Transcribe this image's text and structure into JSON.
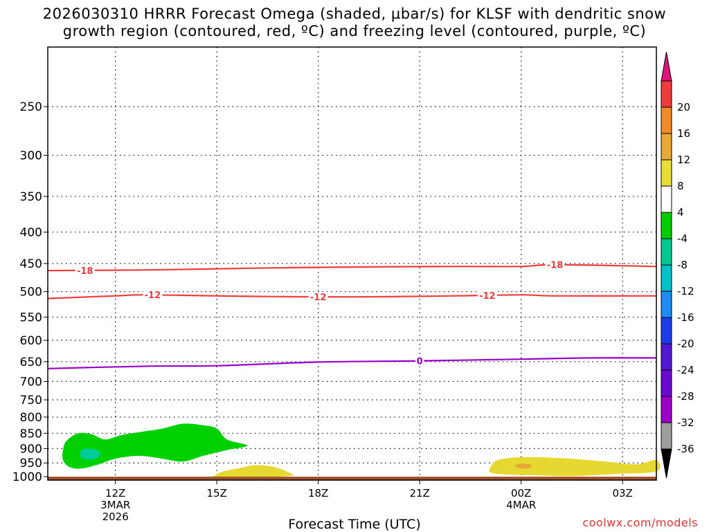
{
  "title": {
    "line1": "2026030310 HRRR Forecast Omega (shaded, µbar/s) for KLSF with dendritic snow",
    "line2": "growth region (contoured, red, ºC) and freezing level (contoured, purple, ºC)"
  },
  "xaxis_title": "Forecast Time (UTC)",
  "credit": "coolwx.com/models",
  "chart_data": {
    "type": "heatmap",
    "y_axis": {
      "label": "",
      "ticks": [
        250,
        300,
        350,
        400,
        450,
        500,
        550,
        600,
        650,
        700,
        750,
        800,
        850,
        900,
        950,
        1000
      ],
      "range": [
        200,
        1013
      ],
      "scale": "log",
      "grid": "dotted"
    },
    "x_axis": {
      "label": "Forecast Time (UTC)",
      "range_hours": [
        10,
        28
      ],
      "ticks": [
        {
          "hour": 12,
          "label": "12Z",
          "sub": "3MAR",
          "sub2": "2026"
        },
        {
          "hour": 15,
          "label": "15Z",
          "sub": "",
          "sub2": ""
        },
        {
          "hour": 18,
          "label": "18Z",
          "sub": "",
          "sub2": ""
        },
        {
          "hour": 21,
          "label": "21Z",
          "sub": "",
          "sub2": ""
        },
        {
          "hour": 24,
          "label": "00Z",
          "sub": "4MAR",
          "sub2": ""
        },
        {
          "hour": 27,
          "label": "03Z",
          "sub": "",
          "sub2": ""
        }
      ],
      "grid": "dotted"
    },
    "ground_pressure": 1000,
    "ground_color": "#a0522d",
    "contours": [
      {
        "name": "dendritic -18",
        "color": "#ee3b3b",
        "label": "-18",
        "hours": [
          10,
          13,
          16,
          19,
          22,
          24,
          25,
          28
        ],
        "pressures": [
          462,
          461,
          458,
          456,
          455,
          455,
          452,
          455
        ],
        "label_hours": [
          11.1,
          25.0
        ]
      },
      {
        "name": "dendritic -12",
        "color": "#ee3b3b",
        "label": "-12",
        "hours": [
          10,
          12,
          13,
          16,
          19,
          22,
          24,
          25,
          28
        ],
        "pressures": [
          513,
          508,
          506,
          509,
          510,
          508,
          506,
          508,
          508
        ],
        "label_hours": [
          13.1,
          18.0,
          23.0
        ]
      },
      {
        "name": "freezing level",
        "color": "#9a00cc",
        "label": "0",
        "hours": [
          10,
          13,
          15,
          18,
          21,
          24,
          26,
          28
        ],
        "pressures": [
          667,
          661,
          660,
          651,
          648,
          644,
          641,
          641
        ],
        "label_hours": [
          21.0
        ]
      }
    ],
    "shaded_regions": [
      {
        "value_range": [
          -8,
          -4
        ],
        "color": "#00d000",
        "polygon": [
          [
            10.45,
            905
          ],
          [
            10.55,
            875
          ],
          [
            10.9,
            850
          ],
          [
            11.3,
            853
          ],
          [
            11.7,
            870
          ],
          [
            12.2,
            855
          ],
          [
            12.8,
            845
          ],
          [
            13.4,
            835
          ],
          [
            14.0,
            820
          ],
          [
            14.6,
            825
          ],
          [
            15.0,
            835
          ],
          [
            15.3,
            870
          ],
          [
            15.9,
            890
          ],
          [
            15.3,
            905
          ],
          [
            14.6,
            925
          ],
          [
            14.0,
            945
          ],
          [
            13.4,
            935
          ],
          [
            12.7,
            925
          ],
          [
            12.0,
            935
          ],
          [
            11.5,
            955
          ],
          [
            11.0,
            970
          ],
          [
            10.65,
            965
          ],
          [
            10.45,
            940
          ]
        ]
      },
      {
        "value_range": [
          -12,
          -8
        ],
        "color": "#00cc99",
        "polygon": [
          [
            10.95,
            915
          ],
          [
            11.1,
            900
          ],
          [
            11.45,
            905
          ],
          [
            11.55,
            920
          ],
          [
            11.4,
            935
          ],
          [
            11.05,
            935
          ]
        ]
      },
      {
        "value_range": [
          4,
          8
        ],
        "color": "#e6d830",
        "polygon": [
          [
            14.95,
            995
          ],
          [
            15.2,
            980
          ],
          [
            15.7,
            968
          ],
          [
            16.1,
            958
          ],
          [
            16.6,
            962
          ],
          [
            17.05,
            980
          ],
          [
            17.1,
            998
          ],
          [
            15.0,
            1002
          ]
        ]
      },
      {
        "value_range": [
          4,
          8
        ],
        "color": "#e6d830",
        "polygon": [
          [
            23.1,
            965
          ],
          [
            23.3,
            940
          ],
          [
            23.9,
            930
          ],
          [
            24.6,
            930
          ],
          [
            25.5,
            935
          ],
          [
            26.5,
            945
          ],
          [
            27.4,
            955
          ],
          [
            28.0,
            940
          ],
          [
            28.0,
            980
          ],
          [
            26.8,
            990
          ],
          [
            25.5,
            998
          ],
          [
            24.5,
            995
          ],
          [
            23.6,
            992
          ],
          [
            23.1,
            985
          ]
        ]
      },
      {
        "value_range": [
          8,
          12
        ],
        "color": "#e8a838",
        "polygon": [
          [
            23.8,
            960
          ],
          [
            24.0,
            952
          ],
          [
            24.3,
            957
          ],
          [
            24.25,
            968
          ],
          [
            24.0,
            970
          ]
        ]
      }
    ],
    "colorbar": {
      "colors": [
        "#000000",
        "#9e9e9e",
        "#9c00c8",
        "#6a0ad0",
        "#5018d0",
        "#1c3ce8",
        "#1e8cf0",
        "#00c0c8",
        "#00c890",
        "#00cc00",
        "#ffffff",
        "#e8dc38",
        "#e8a838",
        "#f08c2c",
        "#ee3c3c",
        "#e0157a"
      ],
      "labels": [
        "-36",
        "-32",
        "-28",
        "-24",
        "-20",
        "-16",
        "-12",
        "-8",
        "-4",
        "4",
        "8",
        "12",
        "16",
        "20"
      ]
    }
  }
}
